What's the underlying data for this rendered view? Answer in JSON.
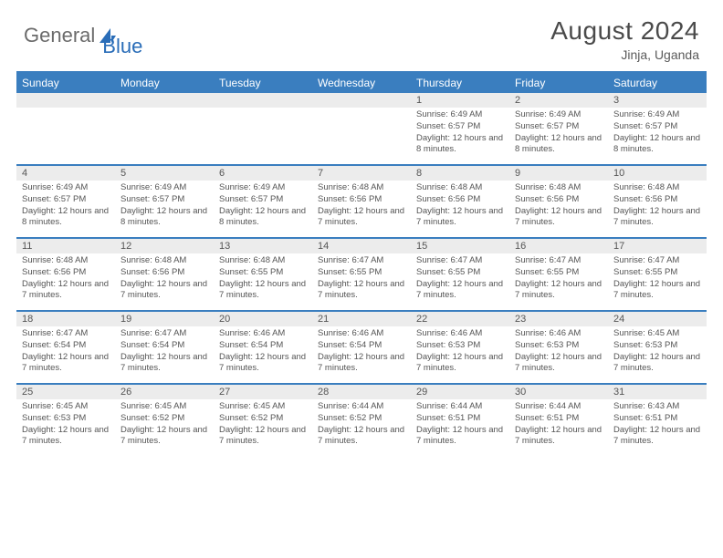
{
  "brand": {
    "part1": "General",
    "part2": "Blue"
  },
  "title": "August 2024",
  "location": "Jinja, Uganda",
  "colors": {
    "header_bg": "#3a7ebf",
    "header_text": "#ffffff",
    "daynum_bg": "#ececec",
    "text": "#555555",
    "rule": "#3a7ebf"
  },
  "weekdays": [
    "Sunday",
    "Monday",
    "Tuesday",
    "Wednesday",
    "Thursday",
    "Friday",
    "Saturday"
  ],
  "weeks": [
    {
      "nums": [
        "",
        "",
        "",
        "",
        "1",
        "2",
        "3"
      ],
      "cells": [
        {
          "sunrise": "",
          "sunset": "",
          "daylight": ""
        },
        {
          "sunrise": "",
          "sunset": "",
          "daylight": ""
        },
        {
          "sunrise": "",
          "sunset": "",
          "daylight": ""
        },
        {
          "sunrise": "",
          "sunset": "",
          "daylight": ""
        },
        {
          "sunrise": "Sunrise: 6:49 AM",
          "sunset": "Sunset: 6:57 PM",
          "daylight": "Daylight: 12 hours and 8 minutes."
        },
        {
          "sunrise": "Sunrise: 6:49 AM",
          "sunset": "Sunset: 6:57 PM",
          "daylight": "Daylight: 12 hours and 8 minutes."
        },
        {
          "sunrise": "Sunrise: 6:49 AM",
          "sunset": "Sunset: 6:57 PM",
          "daylight": "Daylight: 12 hours and 8 minutes."
        }
      ]
    },
    {
      "nums": [
        "4",
        "5",
        "6",
        "7",
        "8",
        "9",
        "10"
      ],
      "cells": [
        {
          "sunrise": "Sunrise: 6:49 AM",
          "sunset": "Sunset: 6:57 PM",
          "daylight": "Daylight: 12 hours and 8 minutes."
        },
        {
          "sunrise": "Sunrise: 6:49 AM",
          "sunset": "Sunset: 6:57 PM",
          "daylight": "Daylight: 12 hours and 8 minutes."
        },
        {
          "sunrise": "Sunrise: 6:49 AM",
          "sunset": "Sunset: 6:57 PM",
          "daylight": "Daylight: 12 hours and 8 minutes."
        },
        {
          "sunrise": "Sunrise: 6:48 AM",
          "sunset": "Sunset: 6:56 PM",
          "daylight": "Daylight: 12 hours and 7 minutes."
        },
        {
          "sunrise": "Sunrise: 6:48 AM",
          "sunset": "Sunset: 6:56 PM",
          "daylight": "Daylight: 12 hours and 7 minutes."
        },
        {
          "sunrise": "Sunrise: 6:48 AM",
          "sunset": "Sunset: 6:56 PM",
          "daylight": "Daylight: 12 hours and 7 minutes."
        },
        {
          "sunrise": "Sunrise: 6:48 AM",
          "sunset": "Sunset: 6:56 PM",
          "daylight": "Daylight: 12 hours and 7 minutes."
        }
      ]
    },
    {
      "nums": [
        "11",
        "12",
        "13",
        "14",
        "15",
        "16",
        "17"
      ],
      "cells": [
        {
          "sunrise": "Sunrise: 6:48 AM",
          "sunset": "Sunset: 6:56 PM",
          "daylight": "Daylight: 12 hours and 7 minutes."
        },
        {
          "sunrise": "Sunrise: 6:48 AM",
          "sunset": "Sunset: 6:56 PM",
          "daylight": "Daylight: 12 hours and 7 minutes."
        },
        {
          "sunrise": "Sunrise: 6:48 AM",
          "sunset": "Sunset: 6:55 PM",
          "daylight": "Daylight: 12 hours and 7 minutes."
        },
        {
          "sunrise": "Sunrise: 6:47 AM",
          "sunset": "Sunset: 6:55 PM",
          "daylight": "Daylight: 12 hours and 7 minutes."
        },
        {
          "sunrise": "Sunrise: 6:47 AM",
          "sunset": "Sunset: 6:55 PM",
          "daylight": "Daylight: 12 hours and 7 minutes."
        },
        {
          "sunrise": "Sunrise: 6:47 AM",
          "sunset": "Sunset: 6:55 PM",
          "daylight": "Daylight: 12 hours and 7 minutes."
        },
        {
          "sunrise": "Sunrise: 6:47 AM",
          "sunset": "Sunset: 6:55 PM",
          "daylight": "Daylight: 12 hours and 7 minutes."
        }
      ]
    },
    {
      "nums": [
        "18",
        "19",
        "20",
        "21",
        "22",
        "23",
        "24"
      ],
      "cells": [
        {
          "sunrise": "Sunrise: 6:47 AM",
          "sunset": "Sunset: 6:54 PM",
          "daylight": "Daylight: 12 hours and 7 minutes."
        },
        {
          "sunrise": "Sunrise: 6:47 AM",
          "sunset": "Sunset: 6:54 PM",
          "daylight": "Daylight: 12 hours and 7 minutes."
        },
        {
          "sunrise": "Sunrise: 6:46 AM",
          "sunset": "Sunset: 6:54 PM",
          "daylight": "Daylight: 12 hours and 7 minutes."
        },
        {
          "sunrise": "Sunrise: 6:46 AM",
          "sunset": "Sunset: 6:54 PM",
          "daylight": "Daylight: 12 hours and 7 minutes."
        },
        {
          "sunrise": "Sunrise: 6:46 AM",
          "sunset": "Sunset: 6:53 PM",
          "daylight": "Daylight: 12 hours and 7 minutes."
        },
        {
          "sunrise": "Sunrise: 6:46 AM",
          "sunset": "Sunset: 6:53 PM",
          "daylight": "Daylight: 12 hours and 7 minutes."
        },
        {
          "sunrise": "Sunrise: 6:45 AM",
          "sunset": "Sunset: 6:53 PM",
          "daylight": "Daylight: 12 hours and 7 minutes."
        }
      ]
    },
    {
      "nums": [
        "25",
        "26",
        "27",
        "28",
        "29",
        "30",
        "31"
      ],
      "cells": [
        {
          "sunrise": "Sunrise: 6:45 AM",
          "sunset": "Sunset: 6:53 PM",
          "daylight": "Daylight: 12 hours and 7 minutes."
        },
        {
          "sunrise": "Sunrise: 6:45 AM",
          "sunset": "Sunset: 6:52 PM",
          "daylight": "Daylight: 12 hours and 7 minutes."
        },
        {
          "sunrise": "Sunrise: 6:45 AM",
          "sunset": "Sunset: 6:52 PM",
          "daylight": "Daylight: 12 hours and 7 minutes."
        },
        {
          "sunrise": "Sunrise: 6:44 AM",
          "sunset": "Sunset: 6:52 PM",
          "daylight": "Daylight: 12 hours and 7 minutes."
        },
        {
          "sunrise": "Sunrise: 6:44 AM",
          "sunset": "Sunset: 6:51 PM",
          "daylight": "Daylight: 12 hours and 7 minutes."
        },
        {
          "sunrise": "Sunrise: 6:44 AM",
          "sunset": "Sunset: 6:51 PM",
          "daylight": "Daylight: 12 hours and 7 minutes."
        },
        {
          "sunrise": "Sunrise: 6:43 AM",
          "sunset": "Sunset: 6:51 PM",
          "daylight": "Daylight: 12 hours and 7 minutes."
        }
      ]
    }
  ]
}
